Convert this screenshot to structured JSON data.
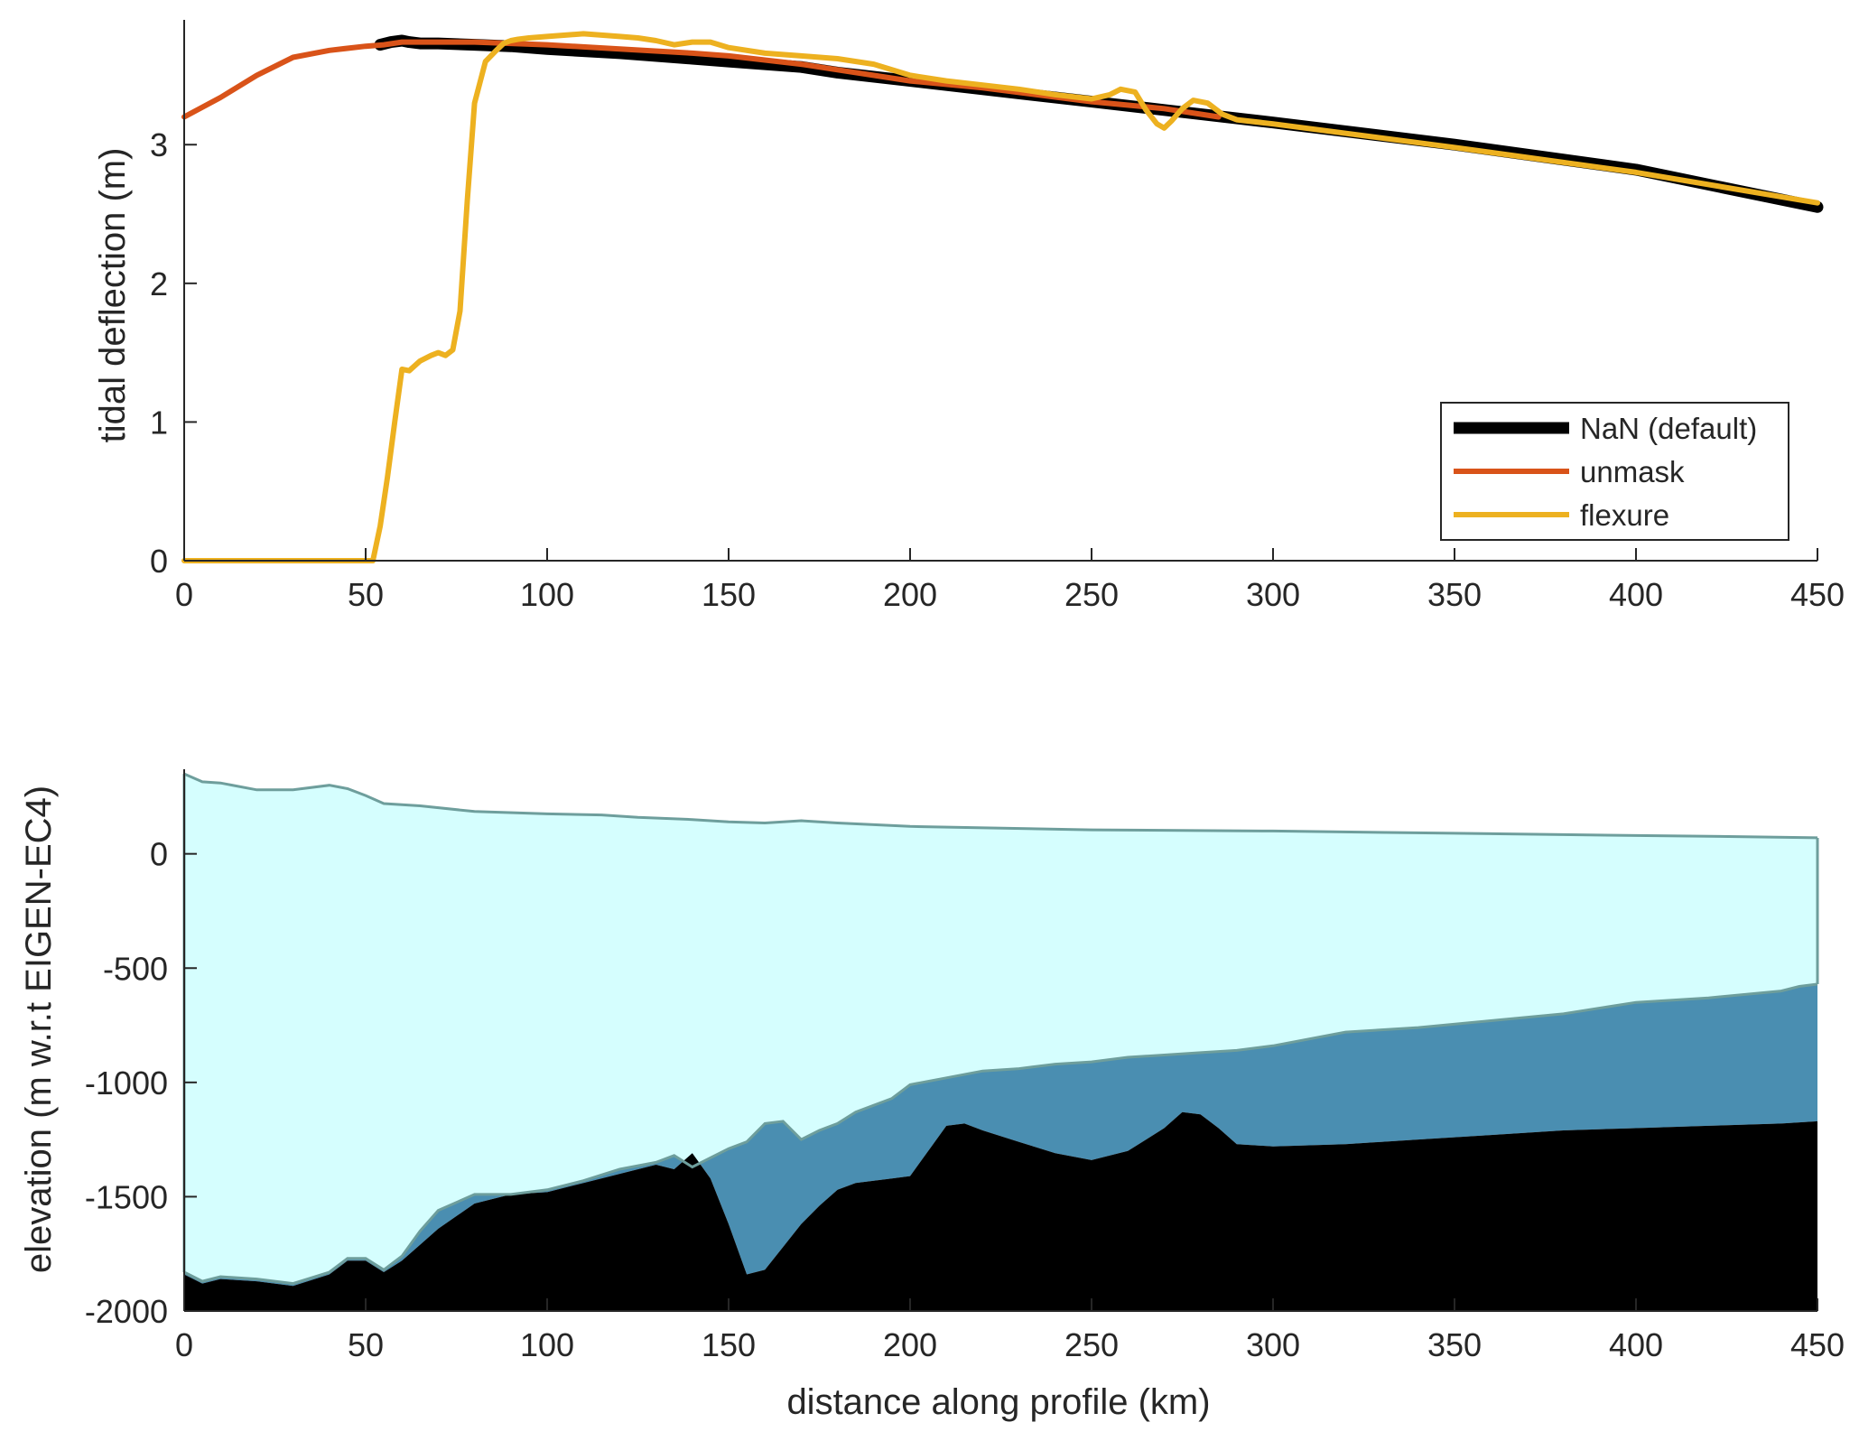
{
  "chart_data": [
    {
      "type": "line",
      "title": "",
      "xlabel": "",
      "ylabel": "tidal deflection (m)",
      "xlim": [
        0,
        450
      ],
      "ylim": [
        0,
        3.9
      ],
      "xticks": [
        0,
        50,
        100,
        150,
        200,
        250,
        300,
        350,
        400,
        450
      ],
      "yticks": [
        0,
        1,
        2,
        3
      ],
      "grid": false,
      "legend_position": "lower-right",
      "series": [
        {
          "name": "NaN (default)",
          "color": "#000000",
          "x": [
            54,
            57,
            60,
            62,
            65,
            70,
            80,
            90,
            100,
            120,
            140,
            150,
            170,
            180,
            200,
            220,
            250,
            270,
            280,
            300,
            350,
            400,
            450
          ],
          "y": [
            3.72,
            3.74,
            3.75,
            3.74,
            3.73,
            3.73,
            3.72,
            3.71,
            3.69,
            3.66,
            3.62,
            3.6,
            3.56,
            3.52,
            3.46,
            3.4,
            3.31,
            3.25,
            3.22,
            3.16,
            3.0,
            2.82,
            2.55
          ]
        },
        {
          "name": "unmask",
          "color": "#D95319",
          "x": [
            0,
            10,
            20,
            30,
            40,
            50,
            55,
            60,
            65,
            70,
            80,
            90,
            100,
            120,
            140,
            150,
            170,
            180,
            200,
            220,
            250,
            270,
            285
          ],
          "y": [
            3.2,
            3.34,
            3.5,
            3.63,
            3.68,
            3.71,
            3.72,
            3.74,
            3.74,
            3.74,
            3.74,
            3.73,
            3.72,
            3.69,
            3.66,
            3.64,
            3.58,
            3.54,
            3.46,
            3.41,
            3.31,
            3.26,
            3.2
          ]
        },
        {
          "name": "flexure",
          "color": "#EDB120",
          "x": [
            0,
            20,
            40,
            52,
            54,
            56,
            58,
            60,
            62,
            65,
            68,
            70,
            72,
            74,
            76,
            78,
            80,
            83,
            86,
            88,
            90,
            92,
            95,
            100,
            105,
            110,
            115,
            120,
            125,
            130,
            135,
            140,
            145,
            150,
            160,
            170,
            180,
            190,
            200,
            210,
            220,
            230,
            240,
            250,
            255,
            258,
            262,
            265,
            268,
            270,
            272,
            275,
            278,
            282,
            286,
            290,
            300,
            350,
            400,
            450
          ],
          "y": [
            0,
            0,
            0,
            0,
            0.25,
            0.6,
            1.0,
            1.38,
            1.37,
            1.44,
            1.48,
            1.5,
            1.48,
            1.52,
            1.8,
            2.6,
            3.3,
            3.6,
            3.68,
            3.73,
            3.75,
            3.76,
            3.77,
            3.78,
            3.79,
            3.8,
            3.79,
            3.78,
            3.77,
            3.75,
            3.72,
            3.74,
            3.74,
            3.7,
            3.66,
            3.64,
            3.62,
            3.58,
            3.5,
            3.46,
            3.43,
            3.4,
            3.36,
            3.33,
            3.36,
            3.4,
            3.38,
            3.25,
            3.15,
            3.12,
            3.17,
            3.26,
            3.32,
            3.3,
            3.22,
            3.18,
            3.15,
            2.98,
            2.8,
            2.58
          ]
        }
      ]
    },
    {
      "type": "area",
      "title": "",
      "xlabel": "distance along profile (km)",
      "ylabel": "elevation (m w.r.t EIGEN-EC4)",
      "xlim": [
        0,
        450
      ],
      "ylim": [
        -2000,
        370
      ],
      "xticks": [
        0,
        50,
        100,
        150,
        200,
        250,
        300,
        350,
        400,
        450
      ],
      "yticks": [
        0,
        -500,
        -1000,
        -1500,
        -2000
      ],
      "ytick_labels": [
        "0",
        "-500",
        "-1000",
        "-1500",
        "-2000"
      ],
      "grid": false,
      "colors": {
        "ice": "#D5FEFE",
        "ice_edge": "#6E9E9C",
        "water": "#4A8EB1",
        "bed": "#000000"
      },
      "surface": {
        "x": [
          0,
          5,
          10,
          20,
          30,
          40,
          45,
          50,
          55,
          65,
          80,
          100,
          115,
          125,
          140,
          150,
          160,
          170,
          180,
          200,
          250,
          300,
          350,
          400,
          430,
          450
        ],
        "y": [
          350,
          315,
          310,
          280,
          280,
          300,
          285,
          255,
          220,
          210,
          185,
          175,
          170,
          160,
          150,
          140,
          135,
          145,
          135,
          120,
          105,
          100,
          90,
          80,
          75,
          70
        ]
      },
      "ice_base": {
        "x": [
          0,
          5,
          10,
          20,
          30,
          40,
          45,
          50,
          55,
          60,
          65,
          70,
          80,
          90,
          100,
          110,
          120,
          130,
          135,
          140,
          145,
          150,
          155,
          160,
          165,
          170,
          175,
          180,
          185,
          190,
          195,
          200,
          210,
          220,
          230,
          240,
          250,
          260,
          270,
          280,
          290,
          300,
          320,
          340,
          360,
          380,
          400,
          420,
          440,
          445,
          450
        ],
        "y": [
          -1830,
          -1870,
          -1850,
          -1860,
          -1880,
          -1830,
          -1770,
          -1770,
          -1820,
          -1760,
          -1650,
          -1560,
          -1490,
          -1490,
          -1470,
          -1430,
          -1380,
          -1350,
          -1320,
          -1370,
          -1330,
          -1290,
          -1260,
          -1180,
          -1170,
          -1250,
          -1210,
          -1180,
          -1130,
          -1100,
          -1070,
          -1010,
          -980,
          -950,
          -940,
          -920,
          -910,
          -890,
          -880,
          -870,
          -860,
          -840,
          -780,
          -760,
          -730,
          -700,
          -650,
          -630,
          -600,
          -580,
          -570
        ]
      },
      "bed": {
        "x": [
          0,
          5,
          10,
          20,
          30,
          40,
          45,
          50,
          55,
          60,
          65,
          70,
          80,
          90,
          100,
          110,
          120,
          130,
          135,
          140,
          145,
          150,
          155,
          160,
          165,
          170,
          175,
          180,
          185,
          190,
          195,
          200,
          205,
          210,
          215,
          220,
          230,
          240,
          250,
          260,
          270,
          275,
          280,
          285,
          290,
          300,
          320,
          340,
          360,
          380,
          400,
          420,
          440,
          450
        ],
        "y": [
          -1840,
          -1880,
          -1860,
          -1870,
          -1890,
          -1840,
          -1780,
          -1780,
          -1830,
          -1780,
          -1710,
          -1640,
          -1530,
          -1490,
          -1480,
          -1440,
          -1400,
          -1360,
          -1380,
          -1310,
          -1420,
          -1620,
          -1840,
          -1820,
          -1720,
          -1620,
          -1540,
          -1470,
          -1440,
          -1430,
          -1420,
          -1410,
          -1300,
          -1190,
          -1180,
          -1210,
          -1260,
          -1310,
          -1340,
          -1300,
          -1200,
          -1130,
          -1140,
          -1200,
          -1270,
          -1280,
          -1270,
          -1250,
          -1230,
          -1210,
          -1200,
          -1190,
          -1180,
          -1170
        ]
      }
    }
  ],
  "legend": {
    "entries": [
      "NaN (default)",
      "unmask",
      "flexure"
    ]
  }
}
